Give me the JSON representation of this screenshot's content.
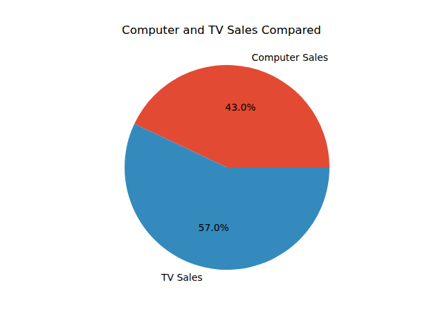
{
  "chart_data": {
    "type": "pie",
    "title": "Computer and TV Sales Compared",
    "categories": [
      "Computer Sales",
      "TV Sales"
    ],
    "values": [
      43,
      57
    ],
    "value_labels": [
      "43.0%",
      "57.0%"
    ],
    "colors": [
      "#E24A33",
      "#348ABD"
    ],
    "data_labels": true
  }
}
